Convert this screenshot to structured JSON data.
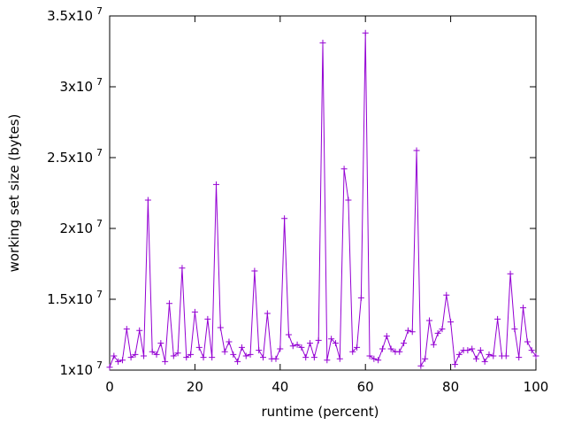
{
  "chart_data": {
    "type": "line",
    "title": "",
    "xlabel": "runtime (percent)",
    "ylabel": "working set size (bytes)",
    "xlim": [
      0,
      100
    ],
    "ylim": [
      10000000,
      35000000
    ],
    "x_ticks": [
      0,
      20,
      40,
      60,
      80,
      100
    ],
    "y_ticks": [
      {
        "value": 10000000,
        "mantissa": "1x10",
        "exponent": "7"
      },
      {
        "value": 15000000,
        "mantissa": "1.5x10",
        "exponent": "7"
      },
      {
        "value": 20000000,
        "mantissa": "2x10",
        "exponent": "7"
      },
      {
        "value": 25000000,
        "mantissa": "2.5x10",
        "exponent": "7"
      },
      {
        "value": 30000000,
        "mantissa": "3x10",
        "exponent": "7"
      },
      {
        "value": 35000000,
        "mantissa": "3.5x10",
        "exponent": "7"
      }
    ],
    "series": [
      {
        "color": "#9400d3",
        "marker": "plus",
        "x": [
          0,
          1,
          2,
          3,
          4,
          5,
          6,
          7,
          8,
          9,
          10,
          11,
          12,
          13,
          14,
          15,
          16,
          17,
          18,
          19,
          20,
          21,
          22,
          23,
          24,
          25,
          26,
          27,
          28,
          29,
          30,
          31,
          32,
          33,
          34,
          35,
          36,
          37,
          38,
          39,
          40,
          41,
          42,
          43,
          44,
          45,
          46,
          47,
          48,
          49,
          50,
          51,
          52,
          53,
          54,
          55,
          56,
          57,
          58,
          59,
          60,
          61,
          62,
          63,
          64,
          65,
          66,
          67,
          68,
          69,
          70,
          71,
          72,
          73,
          74,
          75,
          76,
          77,
          78,
          79,
          80,
          81,
          82,
          83,
          84,
          85,
          86,
          87,
          88,
          89,
          90,
          91,
          92,
          93,
          94,
          95,
          96,
          97,
          98,
          99,
          100
        ],
        "values": [
          10200000,
          11000000,
          10600000,
          10700000,
          12900000,
          10900000,
          11100000,
          12800000,
          11000000,
          22000000,
          11300000,
          11100000,
          11900000,
          10600000,
          14700000,
          11000000,
          11200000,
          17200000,
          10900000,
          11100000,
          14100000,
          11600000,
          10900000,
          13600000,
          10900000,
          23100000,
          13000000,
          11300000,
          12000000,
          11100000,
          10600000,
          11600000,
          11000000,
          11100000,
          17000000,
          11400000,
          10900000,
          14000000,
          10800000,
          10800000,
          11500000,
          20700000,
          12500000,
          11700000,
          11800000,
          11600000,
          10900000,
          11900000,
          10900000,
          12100000,
          33100000,
          10700000,
          12200000,
          11900000,
          10800000,
          24200000,
          22000000,
          11300000,
          11600000,
          15100000,
          33800000,
          11000000,
          10800000,
          10700000,
          11500000,
          12400000,
          11500000,
          11300000,
          11300000,
          11900000,
          12800000,
          12700000,
          25500000,
          10300000,
          10800000,
          13500000,
          11800000,
          12600000,
          12900000,
          15300000,
          13400000,
          10400000,
          11100000,
          11400000,
          11400000,
          11500000,
          10800000,
          11400000,
          10600000,
          11100000,
          11000000,
          13600000,
          11000000,
          11000000,
          16800000,
          12900000,
          10900000,
          14400000,
          12000000,
          11400000,
          11000000
        ]
      }
    ],
    "grid": false,
    "legend": "none"
  }
}
